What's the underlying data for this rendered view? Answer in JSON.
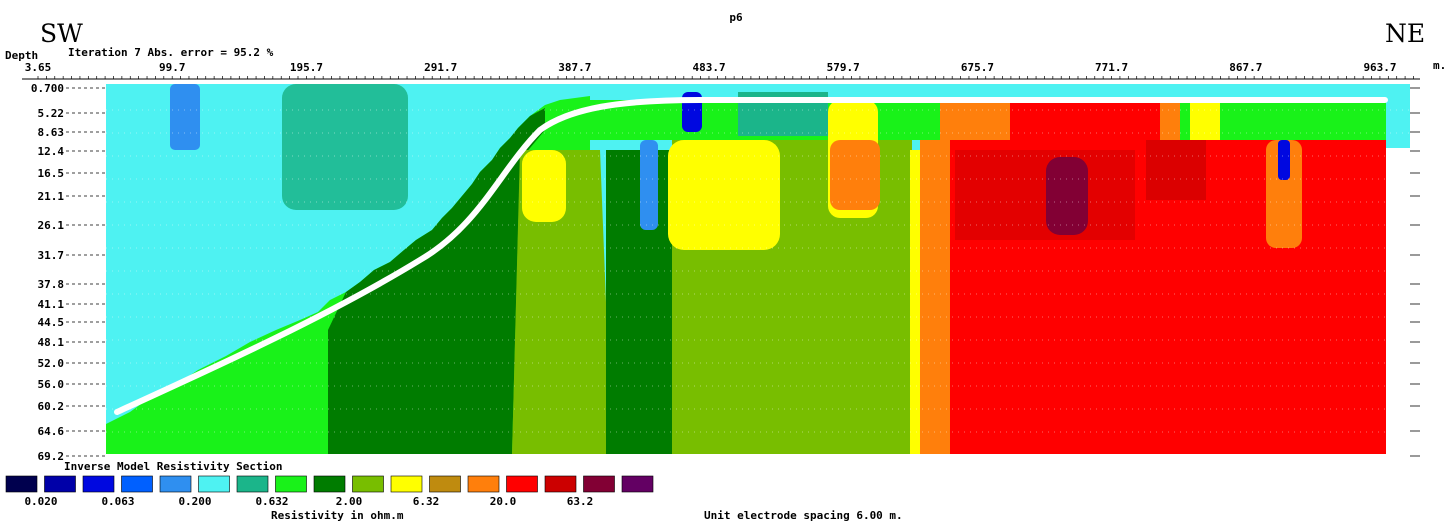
{
  "chart_data": {
    "type": "heatmap",
    "title": "p6",
    "direction_left": "SW",
    "direction_right": "NE",
    "depth_label": "Depth",
    "iteration_text": "Iteration 7 Abs. error = 95.2 %",
    "x_unit": "m.",
    "x_ticks": [
      "3.65",
      "99.7",
      "195.7",
      "291.7",
      "387.7",
      "483.7",
      "579.7",
      "675.7",
      "771.7",
      "867.7",
      "963.7"
    ],
    "x_tick_values": [
      3.65,
      99.7,
      195.7,
      291.7,
      387.7,
      483.7,
      579.7,
      675.7,
      771.7,
      867.7,
      963.7
    ],
    "xlim": [
      3.65,
      1000
    ],
    "y_ticks": [
      "0.700",
      "5.22",
      "8.63",
      "12.4",
      "16.5",
      "21.1",
      "26.1",
      "31.7",
      "37.8",
      "41.1",
      "44.5",
      "48.1",
      "52.0",
      "56.0",
      "60.2",
      "64.6",
      "69.2"
    ],
    "y_tick_values": [
      0.7,
      5.22,
      8.63,
      12.4,
      16.5,
      21.1,
      26.1,
      31.7,
      37.8,
      41.1,
      44.5,
      48.1,
      52.0,
      56.0,
      60.2,
      64.6,
      69.2
    ],
    "ylim": [
      0.7,
      69.2
    ],
    "section_title": "Inverse Model Resistivity Section",
    "legend_colors": [
      "#00004e",
      "#0000a8",
      "#0008e0",
      "#0060ff",
      "#2f8ff0",
      "#4ef2f2",
      "#1bb58a",
      "#19f219",
      "#007c00",
      "#78be00",
      "#ffff00",
      "#bf8b0f",
      "#ff7f0c",
      "#ff0000",
      "#cc0000",
      "#820034",
      "#630063"
    ],
    "legend_value_labels": [
      "0.020",
      "0.063",
      "0.200",
      "0.632",
      "2.00",
      "6.32",
      "20.0",
      "63.2"
    ],
    "legend_axis_label": "Resistivity in ohm.m",
    "unit_spacing_text": "Unit electrode spacing 6.00 m."
  }
}
